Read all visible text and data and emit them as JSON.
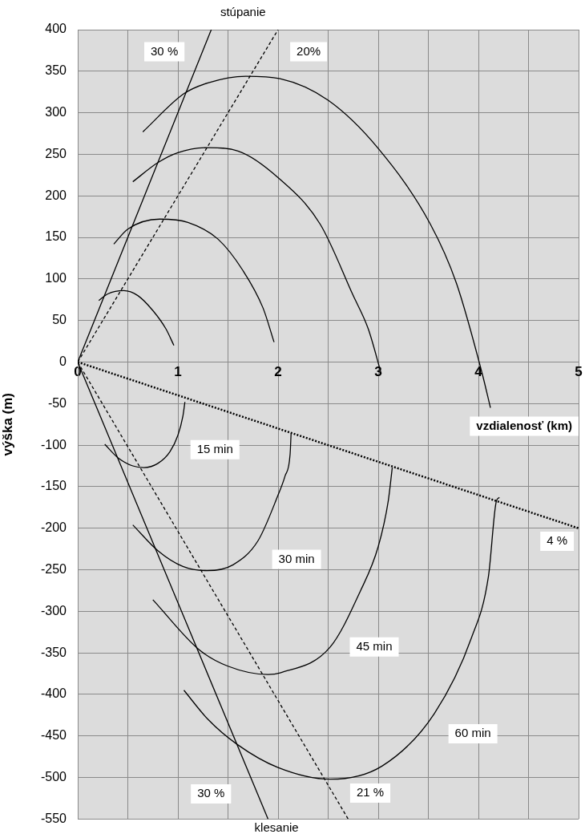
{
  "chart_data": {
    "type": "line",
    "title": "stúpanie",
    "xlabel": "vzdialenosť (km)",
    "ylabel": "výška (m)",
    "xlim": [
      0,
      5
    ],
    "xticks": [
      0,
      {
        "value": 0.5,
        "label": null
      },
      1,
      {
        "value": 1.5,
        "label": null
      },
      2,
      {
        "value": 2.5,
        "label": null
      },
      3,
      {
        "value": 3.5,
        "label": null
      },
      4,
      {
        "value": 4.5,
        "label": null
      },
      5
    ],
    "ylim": [
      -550,
      400
    ],
    "yticks": [
      -550,
      -500,
      -450,
      -400,
      -350,
      -300,
      -250,
      -200,
      -150,
      -100,
      -50,
      0,
      50,
      100,
      150,
      200,
      250,
      300,
      350,
      400
    ],
    "grid": true,
    "legend": false,
    "marker": "none",
    "series": [
      {
        "color": "#000000",
        "line_style": "solid",
        "x": [
          0,
          1.333
        ],
        "values": [
          0,
          400
        ]
      },
      {
        "color": "#000000",
        "line_style": "dashed",
        "x": [
          0,
          2
        ],
        "values": [
          0,
          400
        ]
      },
      {
        "color": "#000000",
        "line_style": "dotted",
        "x": [
          0,
          5
        ],
        "values": [
          0,
          -200
        ]
      },
      {
        "color": "#000000",
        "line_style": "solid",
        "x": [
          0,
          1.9
        ],
        "values": [
          0,
          -550
        ]
      },
      {
        "color": "#000000",
        "line_style": "dashed",
        "x": [
          0,
          2.7
        ],
        "values": [
          0,
          -550
        ]
      },
      {
        "color": "#000000",
        "line_style": "solid",
        "x": [
          0.21,
          0.3,
          0.46,
          0.6,
          0.75,
          0.88,
          0.96
        ],
        "values": [
          74,
          82,
          86,
          80,
          62,
          40,
          20
        ]
      },
      {
        "color": "#000000",
        "line_style": "solid",
        "x": [
          0.36,
          0.5,
          0.82,
          1.1,
          1.4,
          1.65,
          1.85,
          1.96
        ],
        "values": [
          142,
          160,
          172,
          168,
          148,
          110,
          65,
          24
        ]
      },
      {
        "color": "#000000",
        "line_style": "solid",
        "x": [
          0.55,
          0.8,
          1.0,
          1.3,
          1.6,
          2.0,
          2.42,
          2.75,
          2.9,
          3.03
        ],
        "values": [
          217,
          240,
          252,
          258,
          254,
          222,
          166,
          80,
          40,
          -14
        ]
      },
      {
        "color": "#000000",
        "line_style": "solid",
        "x": [
          0.65,
          1.06,
          1.3,
          1.68,
          2.02,
          2.5,
          3.0,
          3.52,
          3.78,
          4.04,
          4.12
        ],
        "values": [
          277,
          323,
          336,
          344,
          341,
          315,
          257,
          166,
          95,
          -15,
          -55
        ]
      },
      {
        "color": "#000000",
        "line_style": "solid",
        "x": [
          0.27,
          0.4,
          0.55,
          0.66,
          0.8,
          0.92,
          1.0,
          1.05,
          1.07
        ],
        "values": [
          -99,
          -115,
          -125,
          -127,
          -122,
          -108,
          -88,
          -65,
          -48
        ]
      },
      {
        "color": "#000000",
        "line_style": "solid",
        "x": [
          0.55,
          0.8,
          1.05,
          1.29,
          1.55,
          1.8,
          2.0,
          2.07,
          2.12,
          2.13
        ],
        "values": [
          -196,
          -227,
          -246,
          -251,
          -244,
          -215,
          -160,
          -137,
          -111,
          -86
        ]
      },
      {
        "color": "#000000",
        "line_style": "solid",
        "x": [
          0.75,
          1.21,
          1.5,
          1.9,
          2.02,
          2.52,
          2.82,
          3.0,
          3.1,
          3.14
        ],
        "values": [
          -286,
          -346,
          -366,
          -376,
          -374,
          -343,
          -276,
          -222,
          -167,
          -127
        ]
      },
      {
        "color": "#000000",
        "line_style": "solid",
        "x": [
          1.06,
          1.3,
          1.59,
          2.0,
          2.52,
          3.04,
          3.56,
          3.93,
          4.1,
          4.18,
          4.21
        ],
        "values": [
          -395,
          -430,
          -460,
          -488,
          -502,
          -486,
          -423,
          -332,
          -258,
          -167,
          -163
        ]
      }
    ],
    "annotations": [
      "30 %",
      "20%",
      "15 min",
      "30 min",
      "45 min",
      "60 min",
      "4 %",
      "30 %",
      "21 %",
      "klesanie"
    ]
  }
}
